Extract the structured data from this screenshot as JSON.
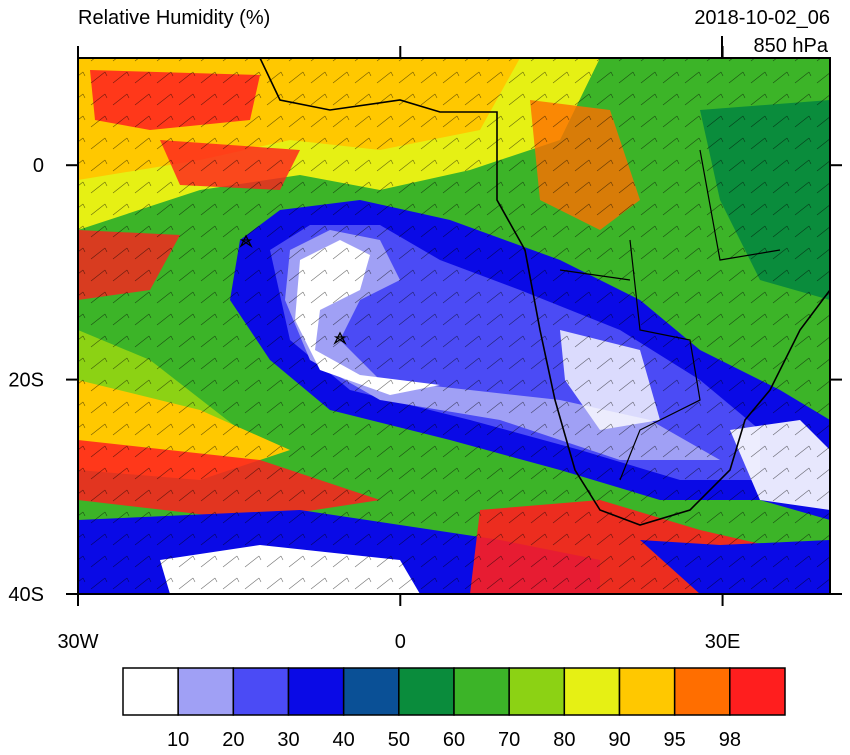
{
  "map": {
    "title": "Relative Humidity (%)",
    "valid_time": "2018-10-02_06",
    "level": "850 hPa",
    "lonlim": [
      -30,
      40
    ],
    "latlim": [
      -40,
      10
    ],
    "lon_ticks": [
      {
        "value": -30,
        "label": "30W"
      },
      0,
      {
        "value": 30,
        "label": "30E"
      }
    ],
    "lat_ticks": [
      0,
      {
        "value": -20,
        "label": "20S"
      },
      {
        "value": -40,
        "label": "40S"
      }
    ],
    "colorbar": {
      "levels": [
        10,
        20,
        30,
        40,
        50,
        60,
        70,
        80,
        90,
        95,
        98
      ],
      "colors": [
        "#ffffff",
        "#a0a0f5",
        "#4b4bf5",
        "#0a0ae6",
        "#0a5096",
        "#0a8c3c",
        "#3cb428",
        "#8cd214",
        "#e6f014",
        "#ffc800",
        "#ff6e00",
        "#ff1e1e"
      ]
    }
  }
}
